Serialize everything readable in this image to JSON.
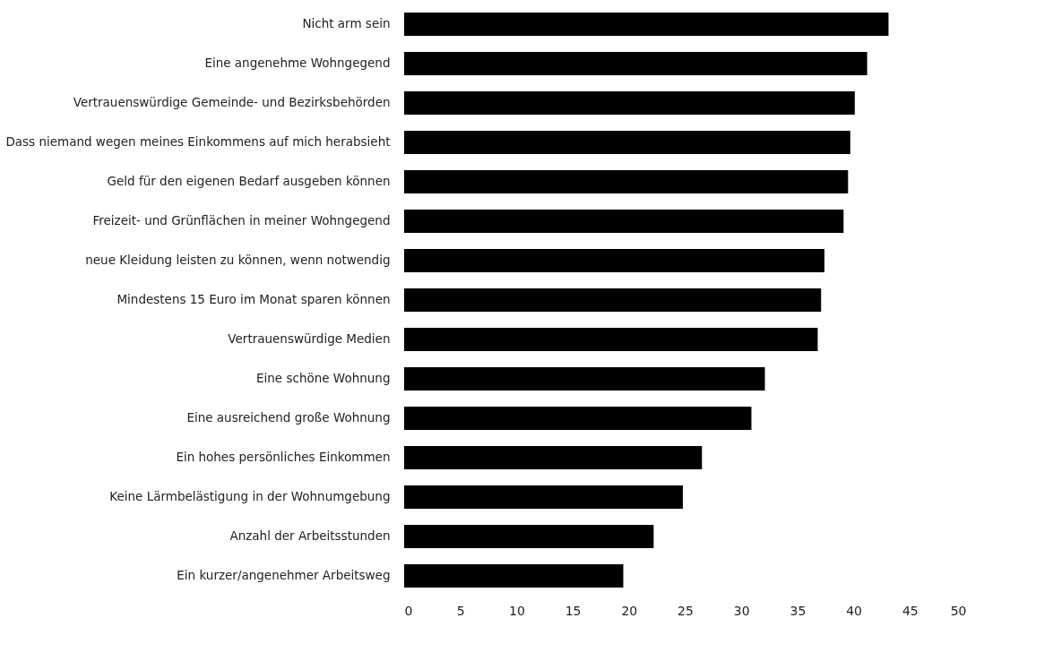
{
  "chart_data": {
    "type": "bar",
    "orientation": "horizontal",
    "categories": [
      "Nicht arm sein",
      "Eine angenehme Wohngegend",
      "Vertrauenswürdige Gemeinde- und Bezirksbehörden",
      "Dass niemand wegen meines Einkommens auf mich herabsieht",
      "Geld für den eigenen Bedarf ausgeben können",
      "Freizeit- und Grünflächen in meiner Wohngegend",
      "neue Kleidung leisten zu können, wenn notwendig",
      "Mindestens 15 Euro im Monat sparen können",
      "Vertrauenswürdige Medien",
      "Eine schöne Wohnung",
      "Eine ausreichend große Wohnung",
      "Ein hohes persönliches Einkommen",
      "Keine Lärmbelästigung in der Wohnumgebung",
      "Anzahl der Arbeitsstunden",
      "Ein kurzer/angenehmer Arbeitsweg"
    ],
    "values": [
      43.1,
      41.2,
      40.1,
      39.7,
      39.5,
      39.1,
      37.4,
      37.1,
      36.8,
      32.1,
      30.9,
      26.5,
      24.8,
      22.2,
      19.5
    ],
    "color": "#000000",
    "xlim": [
      0,
      50
    ],
    "xticks": [
      0,
      5,
      10,
      15,
      20,
      25,
      30,
      35,
      40,
      45,
      50
    ],
    "grid": false
  }
}
